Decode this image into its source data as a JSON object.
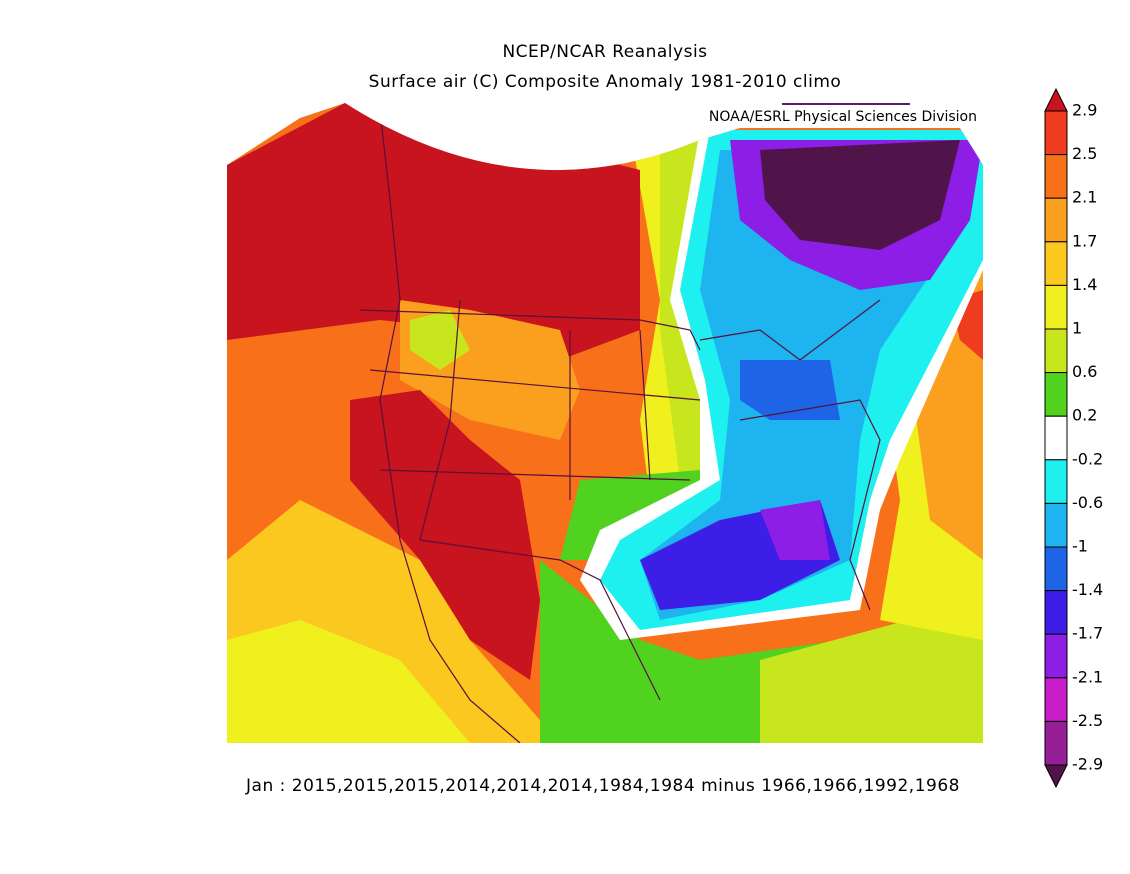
{
  "header": {
    "title": "NCEP/NCAR Reanalysis",
    "subtitle": "Surface air (C) Composite Anomaly 1981-2010 climo",
    "credit": "NOAA/ESRL Physical Sciences Division"
  },
  "footer": "Jan : 2015,2015,2015,2014,2014,2014,1984,1984 minus 1966,1966,1992,1968",
  "colorbar": {
    "levels": [
      2.9,
      2.5,
      2.1,
      1.7,
      1.4,
      1,
      0.6,
      0.2,
      -0.2,
      -0.6,
      -1,
      -1.4,
      -1.7,
      -2.1,
      -2.5,
      -2.9
    ],
    "colors": [
      "#c8141e",
      "#f03c1e",
      "#f8701a",
      "#faa01e",
      "#fac81e",
      "#f0f01e",
      "#c8e61e",
      "#50d21e",
      "#ffffff",
      "#1ef0f0",
      "#1eb4f0",
      "#1e64e6",
      "#3c1ee6",
      "#8c1ee6",
      "#c81ec8",
      "#961e96",
      "#50144b"
    ]
  }
}
